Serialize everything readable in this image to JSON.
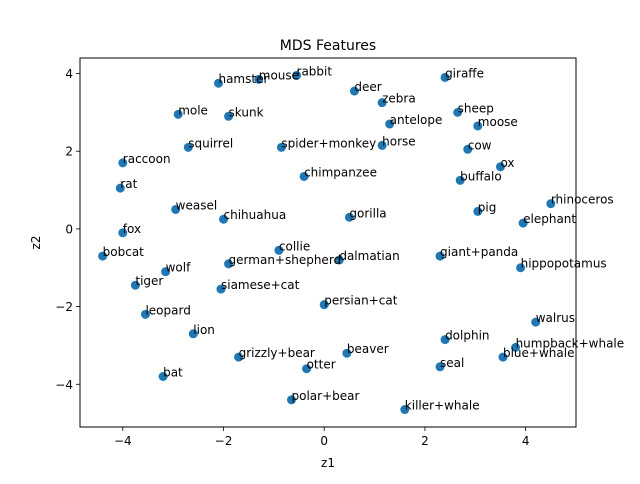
{
  "chart_data": {
    "type": "scatter",
    "title": "MDS Features",
    "xlabel": "z1",
    "ylabel": "z2",
    "xlim": [
      -4.85,
      5.0
    ],
    "ylim": [
      -5.1,
      4.4
    ],
    "xticks": [
      -4,
      -2,
      0,
      2,
      4
    ],
    "yticks": [
      -4,
      -2,
      0,
      2,
      4
    ],
    "grid": false,
    "marker_color": "#1f77b4",
    "points": [
      {
        "label": "rabbit",
        "x": -0.55,
        "y": 3.95
      },
      {
        "label": "mouse",
        "x": -1.3,
        "y": 3.85
      },
      {
        "label": "hamster",
        "x": -2.1,
        "y": 3.75
      },
      {
        "label": "giraffe",
        "x": 2.4,
        "y": 3.9
      },
      {
        "label": "deer",
        "x": 0.6,
        "y": 3.55
      },
      {
        "label": "zebra",
        "x": 1.15,
        "y": 3.25
      },
      {
        "label": "sheep",
        "x": 2.65,
        "y": 3.0
      },
      {
        "label": "mole",
        "x": -2.9,
        "y": 2.95
      },
      {
        "label": "skunk",
        "x": -1.9,
        "y": 2.9
      },
      {
        "label": "antelope",
        "x": 1.3,
        "y": 2.7
      },
      {
        "label": "moose",
        "x": 3.05,
        "y": 2.65
      },
      {
        "label": "squirrel",
        "x": -2.7,
        "y": 2.1
      },
      {
        "label": "spider+monkey",
        "x": -0.85,
        "y": 2.1
      },
      {
        "label": "horse",
        "x": 1.15,
        "y": 2.15
      },
      {
        "label": "cow",
        "x": 2.85,
        "y": 2.05
      },
      {
        "label": "raccoon",
        "x": -4.0,
        "y": 1.7
      },
      {
        "label": "ox",
        "x": 3.5,
        "y": 1.6
      },
      {
        "label": "chimpanzee",
        "x": -0.4,
        "y": 1.35
      },
      {
        "label": "buffalo",
        "x": 2.7,
        "y": 1.25
      },
      {
        "label": "rat",
        "x": -4.05,
        "y": 1.05
      },
      {
        "label": "rhinoceros",
        "x": 4.5,
        "y": 0.65
      },
      {
        "label": "weasel",
        "x": -2.95,
        "y": 0.5
      },
      {
        "label": "pig",
        "x": 3.05,
        "y": 0.45
      },
      {
        "label": "gorilla",
        "x": 0.5,
        "y": 0.3
      },
      {
        "label": "chihuahua",
        "x": -2.0,
        "y": 0.25
      },
      {
        "label": "elephant",
        "x": 3.95,
        "y": 0.15
      },
      {
        "label": "fox",
        "x": -4.0,
        "y": -0.1
      },
      {
        "label": "collie",
        "x": -0.9,
        "y": -0.55
      },
      {
        "label": "bobcat",
        "x": -4.4,
        "y": -0.7
      },
      {
        "label": "giant+panda",
        "x": 2.3,
        "y": -0.7
      },
      {
        "label": "dalmatian",
        "x": 0.3,
        "y": -0.8
      },
      {
        "label": "german+shepherd",
        "x": -1.9,
        "y": -0.9
      },
      {
        "label": "hippopotamus",
        "x": 3.9,
        "y": -1.0
      },
      {
        "label": "wolf",
        "x": -3.15,
        "y": -1.1
      },
      {
        "label": "tiger",
        "x": -3.75,
        "y": -1.45
      },
      {
        "label": "siamese+cat",
        "x": -2.05,
        "y": -1.55
      },
      {
        "label": "persian+cat",
        "x": 0.0,
        "y": -1.95
      },
      {
        "label": "leopard",
        "x": -3.55,
        "y": -2.2
      },
      {
        "label": "walrus",
        "x": 4.2,
        "y": -2.4
      },
      {
        "label": "lion",
        "x": -2.6,
        "y": -2.7
      },
      {
        "label": "dolphin",
        "x": 2.4,
        "y": -2.85
      },
      {
        "label": "humpback+whale",
        "x": 3.8,
        "y": -3.05
      },
      {
        "label": "beaver",
        "x": 0.45,
        "y": -3.2
      },
      {
        "label": "blue+whale",
        "x": 3.55,
        "y": -3.3
      },
      {
        "label": "grizzly+bear",
        "x": -1.7,
        "y": -3.3
      },
      {
        "label": "seal",
        "x": 2.3,
        "y": -3.55
      },
      {
        "label": "otter",
        "x": -0.35,
        "y": -3.6
      },
      {
        "label": "bat",
        "x": -3.2,
        "y": -3.8
      },
      {
        "label": "polar+bear",
        "x": -0.65,
        "y": -4.4
      },
      {
        "label": "killer+whale",
        "x": 1.6,
        "y": -4.65
      }
    ]
  }
}
